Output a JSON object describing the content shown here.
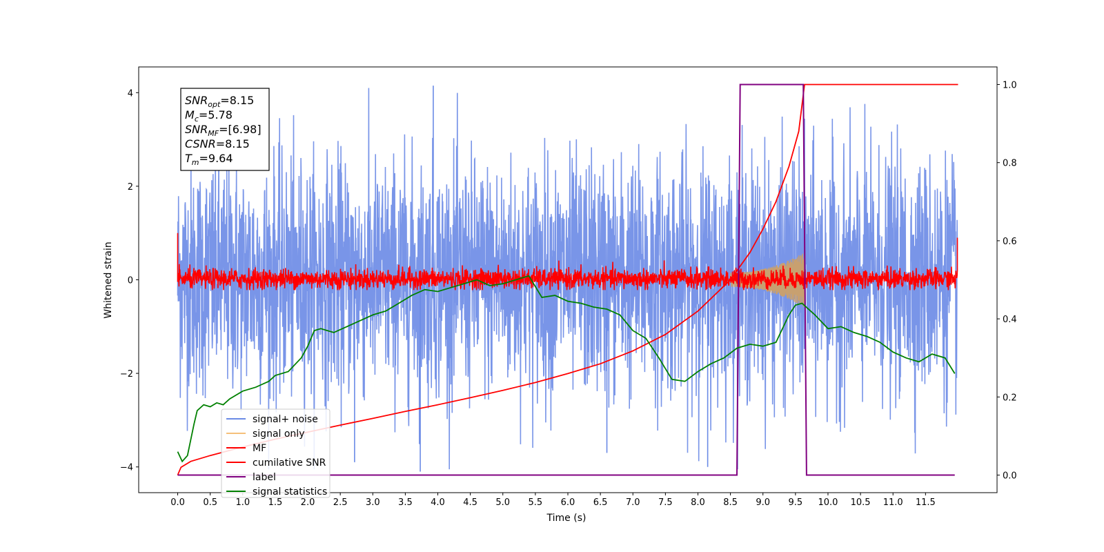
{
  "colors": {
    "noise": "#6a8ae6",
    "signal": "#f5a623",
    "mf": "#ff0000",
    "cumulative": "#ff0000",
    "label": "#800080",
    "statistics": "#008000"
  },
  "infobox": {
    "lines": [
      {
        "base": "SNR",
        "sub": "opt",
        "value": "=8.15"
      },
      {
        "base": "M",
        "sub": "c",
        "value": "=5.78"
      },
      {
        "base": "SNR",
        "sub": "MF",
        "value": "=[6.98]"
      },
      {
        "base": "CSNR",
        "sub": "",
        "value": "=8.15"
      },
      {
        "base": "T",
        "sub": "m",
        "value": "=9.64"
      }
    ]
  },
  "chart_data": {
    "type": "line",
    "xlabel": "Time (s)",
    "ylabel": "Whitened strain",
    "ylabel_right": "",
    "xlim": [
      -0.6,
      12.6
    ],
    "ylim": [
      -4.55,
      4.55
    ],
    "ylim_right": [
      -0.045,
      1.045
    ],
    "xticks": [
      "0.0",
      "0.5",
      "1.0",
      "1.5",
      "2.0",
      "2.5",
      "3.0",
      "3.5",
      "4.0",
      "4.5",
      "5.0",
      "5.5",
      "6.0",
      "6.5",
      "7.0",
      "7.5",
      "8.0",
      "8.5",
      "9.0",
      "9.5",
      "10.0",
      "10.5",
      "11.0",
      "11.5"
    ],
    "yticks": [
      "−4",
      "−2",
      "0",
      "2",
      "4"
    ],
    "yticks_right": [
      "0.0",
      "0.2",
      "0.4",
      "0.6",
      "0.8",
      "1.0"
    ],
    "legend_position": "lower-left",
    "series": [
      {
        "name": "signal+ noise",
        "axis": "left",
        "description_range": [
          -4.1,
          4.15
        ],
        "t_range": [
          0,
          12.0
        ]
      },
      {
        "name": "signal only",
        "axis": "left",
        "envelope_peak": [
          9.64,
          0.6
        ],
        "t_range": [
          8.5,
          9.64
        ]
      },
      {
        "name": "MF",
        "axis": "left",
        "range": [
          -0.2,
          0.5
        ],
        "t_range": [
          0,
          12.0
        ]
      },
      {
        "name": "cumilative SNR",
        "axis": "right",
        "x": [
          0.0,
          0.05,
          0.2,
          0.5,
          1.0,
          1.5,
          2.0,
          2.5,
          3.0,
          3.5,
          4.0,
          4.5,
          5.0,
          5.5,
          6.0,
          6.5,
          7.0,
          7.5,
          8.0,
          8.5,
          8.8,
          9.0,
          9.2,
          9.4,
          9.55,
          9.64,
          9.65,
          12.0
        ],
        "y": [
          0.0,
          0.02,
          0.035,
          0.05,
          0.072,
          0.092,
          0.11,
          0.128,
          0.145,
          0.163,
          0.18,
          0.198,
          0.217,
          0.237,
          0.26,
          0.285,
          0.318,
          0.36,
          0.42,
          0.5,
          0.57,
          0.63,
          0.7,
          0.79,
          0.88,
          1.0,
          1.0,
          1.0
        ]
      },
      {
        "name": "label",
        "axis": "right",
        "x": [
          0.0,
          8.6,
          8.65,
          9.62,
          9.67,
          11.95
        ],
        "y": [
          0.0,
          0.0,
          1.0,
          1.0,
          0.0,
          0.0
        ]
      },
      {
        "name": "signal statistics",
        "axis": "right",
        "x": [
          0.0,
          0.07,
          0.15,
          0.2,
          0.25,
          0.3,
          0.4,
          0.5,
          0.6,
          0.7,
          0.8,
          1.0,
          1.2,
          1.4,
          1.5,
          1.7,
          1.9,
          2.0,
          2.1,
          2.2,
          2.4,
          2.6,
          2.8,
          3.0,
          3.2,
          3.4,
          3.6,
          3.8,
          4.0,
          4.2,
          4.4,
          4.6,
          4.8,
          5.0,
          5.2,
          5.4,
          5.6,
          5.8,
          6.0,
          6.2,
          6.4,
          6.6,
          6.8,
          7.0,
          7.2,
          7.4,
          7.6,
          7.8,
          8.0,
          8.2,
          8.4,
          8.6,
          8.8,
          9.0,
          9.2,
          9.4,
          9.5,
          9.6,
          9.8,
          10.0,
          10.2,
          10.4,
          10.6,
          10.8,
          11.0,
          11.2,
          11.4,
          11.6,
          11.8,
          11.95
        ],
        "y": [
          0.06,
          0.035,
          0.05,
          0.09,
          0.13,
          0.165,
          0.18,
          0.175,
          0.185,
          0.18,
          0.195,
          0.215,
          0.225,
          0.24,
          0.255,
          0.265,
          0.3,
          0.33,
          0.37,
          0.375,
          0.365,
          0.38,
          0.395,
          0.41,
          0.42,
          0.44,
          0.46,
          0.475,
          0.47,
          0.48,
          0.49,
          0.5,
          0.485,
          0.49,
          0.5,
          0.51,
          0.455,
          0.46,
          0.445,
          0.44,
          0.43,
          0.425,
          0.41,
          0.37,
          0.35,
          0.3,
          0.245,
          0.24,
          0.265,
          0.285,
          0.3,
          0.325,
          0.335,
          0.33,
          0.34,
          0.41,
          0.435,
          0.44,
          0.41,
          0.375,
          0.38,
          0.365,
          0.355,
          0.34,
          0.315,
          0.3,
          0.29,
          0.31,
          0.3,
          0.26
        ]
      }
    ]
  },
  "legend": [
    {
      "label": "signal+ noise",
      "color": "#6a8ae6"
    },
    {
      "label": "signal only",
      "color": "#f5c07a"
    },
    {
      "label": "MF",
      "color": "#ff0000"
    },
    {
      "label": "cumilative SNR",
      "color": "#ff0000"
    },
    {
      "label": "label",
      "color": "#800080"
    },
    {
      "label": "signal statistics",
      "color": "#008000"
    }
  ]
}
